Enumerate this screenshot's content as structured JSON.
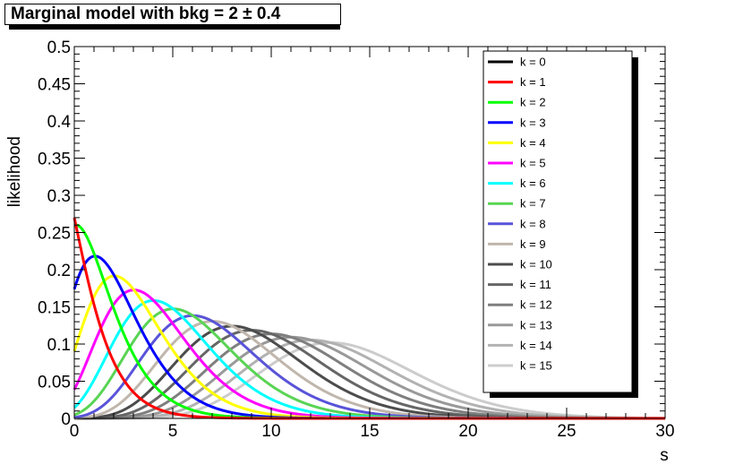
{
  "chart_data": {
    "type": "line",
    "title": "Marginal model with bkg = 2 ± 0.4",
    "xlabel": "s",
    "ylabel": "likelihood",
    "xlim": [
      0,
      30
    ],
    "ylim": [
      0,
      0.5
    ],
    "x_ticks": [
      0,
      5,
      10,
      15,
      20,
      25,
      30
    ],
    "x_tick_labels": [
      "0",
      "5",
      "10",
      "15",
      "20",
      "25",
      "30"
    ],
    "y_ticks": [
      0,
      0.05,
      0.1,
      0.15,
      0.2,
      0.25,
      0.3,
      0.35,
      0.4,
      0.45,
      0.5
    ],
    "y_tick_labels": [
      "0",
      "0.05",
      "0.1",
      "0.15",
      "0.2",
      "0.25",
      "0.3",
      "0.35",
      "0.4",
      "0.45",
      "0.5"
    ],
    "grid": false,
    "legend_position": "top-right",
    "model": {
      "bkg_mean": 2,
      "bkg_sigma": 0.4
    },
    "series": [
      {
        "name": "k = 0",
        "k": 0,
        "color": "#000000"
      },
      {
        "name": "k = 1",
        "k": 1,
        "color": "#ff0000"
      },
      {
        "name": "k = 2",
        "k": 2,
        "color": "#00ff00"
      },
      {
        "name": "k = 3",
        "k": 3,
        "color": "#0000ff"
      },
      {
        "name": "k = 4",
        "k": 4,
        "color": "#ffff00"
      },
      {
        "name": "k = 5",
        "k": 5,
        "color": "#ff00ff"
      },
      {
        "name": "k = 6",
        "k": 6,
        "color": "#00ffff"
      },
      {
        "name": "k = 7",
        "k": 7,
        "color": "#59d454"
      },
      {
        "name": "k = 8",
        "k": 8,
        "color": "#5954d8"
      },
      {
        "name": "k = 9",
        "k": 9,
        "color": "#c0b6ac"
      },
      {
        "name": "k = 10",
        "k": 10,
        "color": "#4c4c4c"
      },
      {
        "name": "k = 11",
        "k": 11,
        "color": "#666666"
      },
      {
        "name": "k = 12",
        "k": 12,
        "color": "#7f7f7f"
      },
      {
        "name": "k = 13",
        "k": 13,
        "color": "#999999"
      },
      {
        "name": "k = 14",
        "k": 14,
        "color": "#b2b2b2"
      },
      {
        "name": "k = 15",
        "k": 15,
        "color": "#cccccc"
      }
    ]
  }
}
